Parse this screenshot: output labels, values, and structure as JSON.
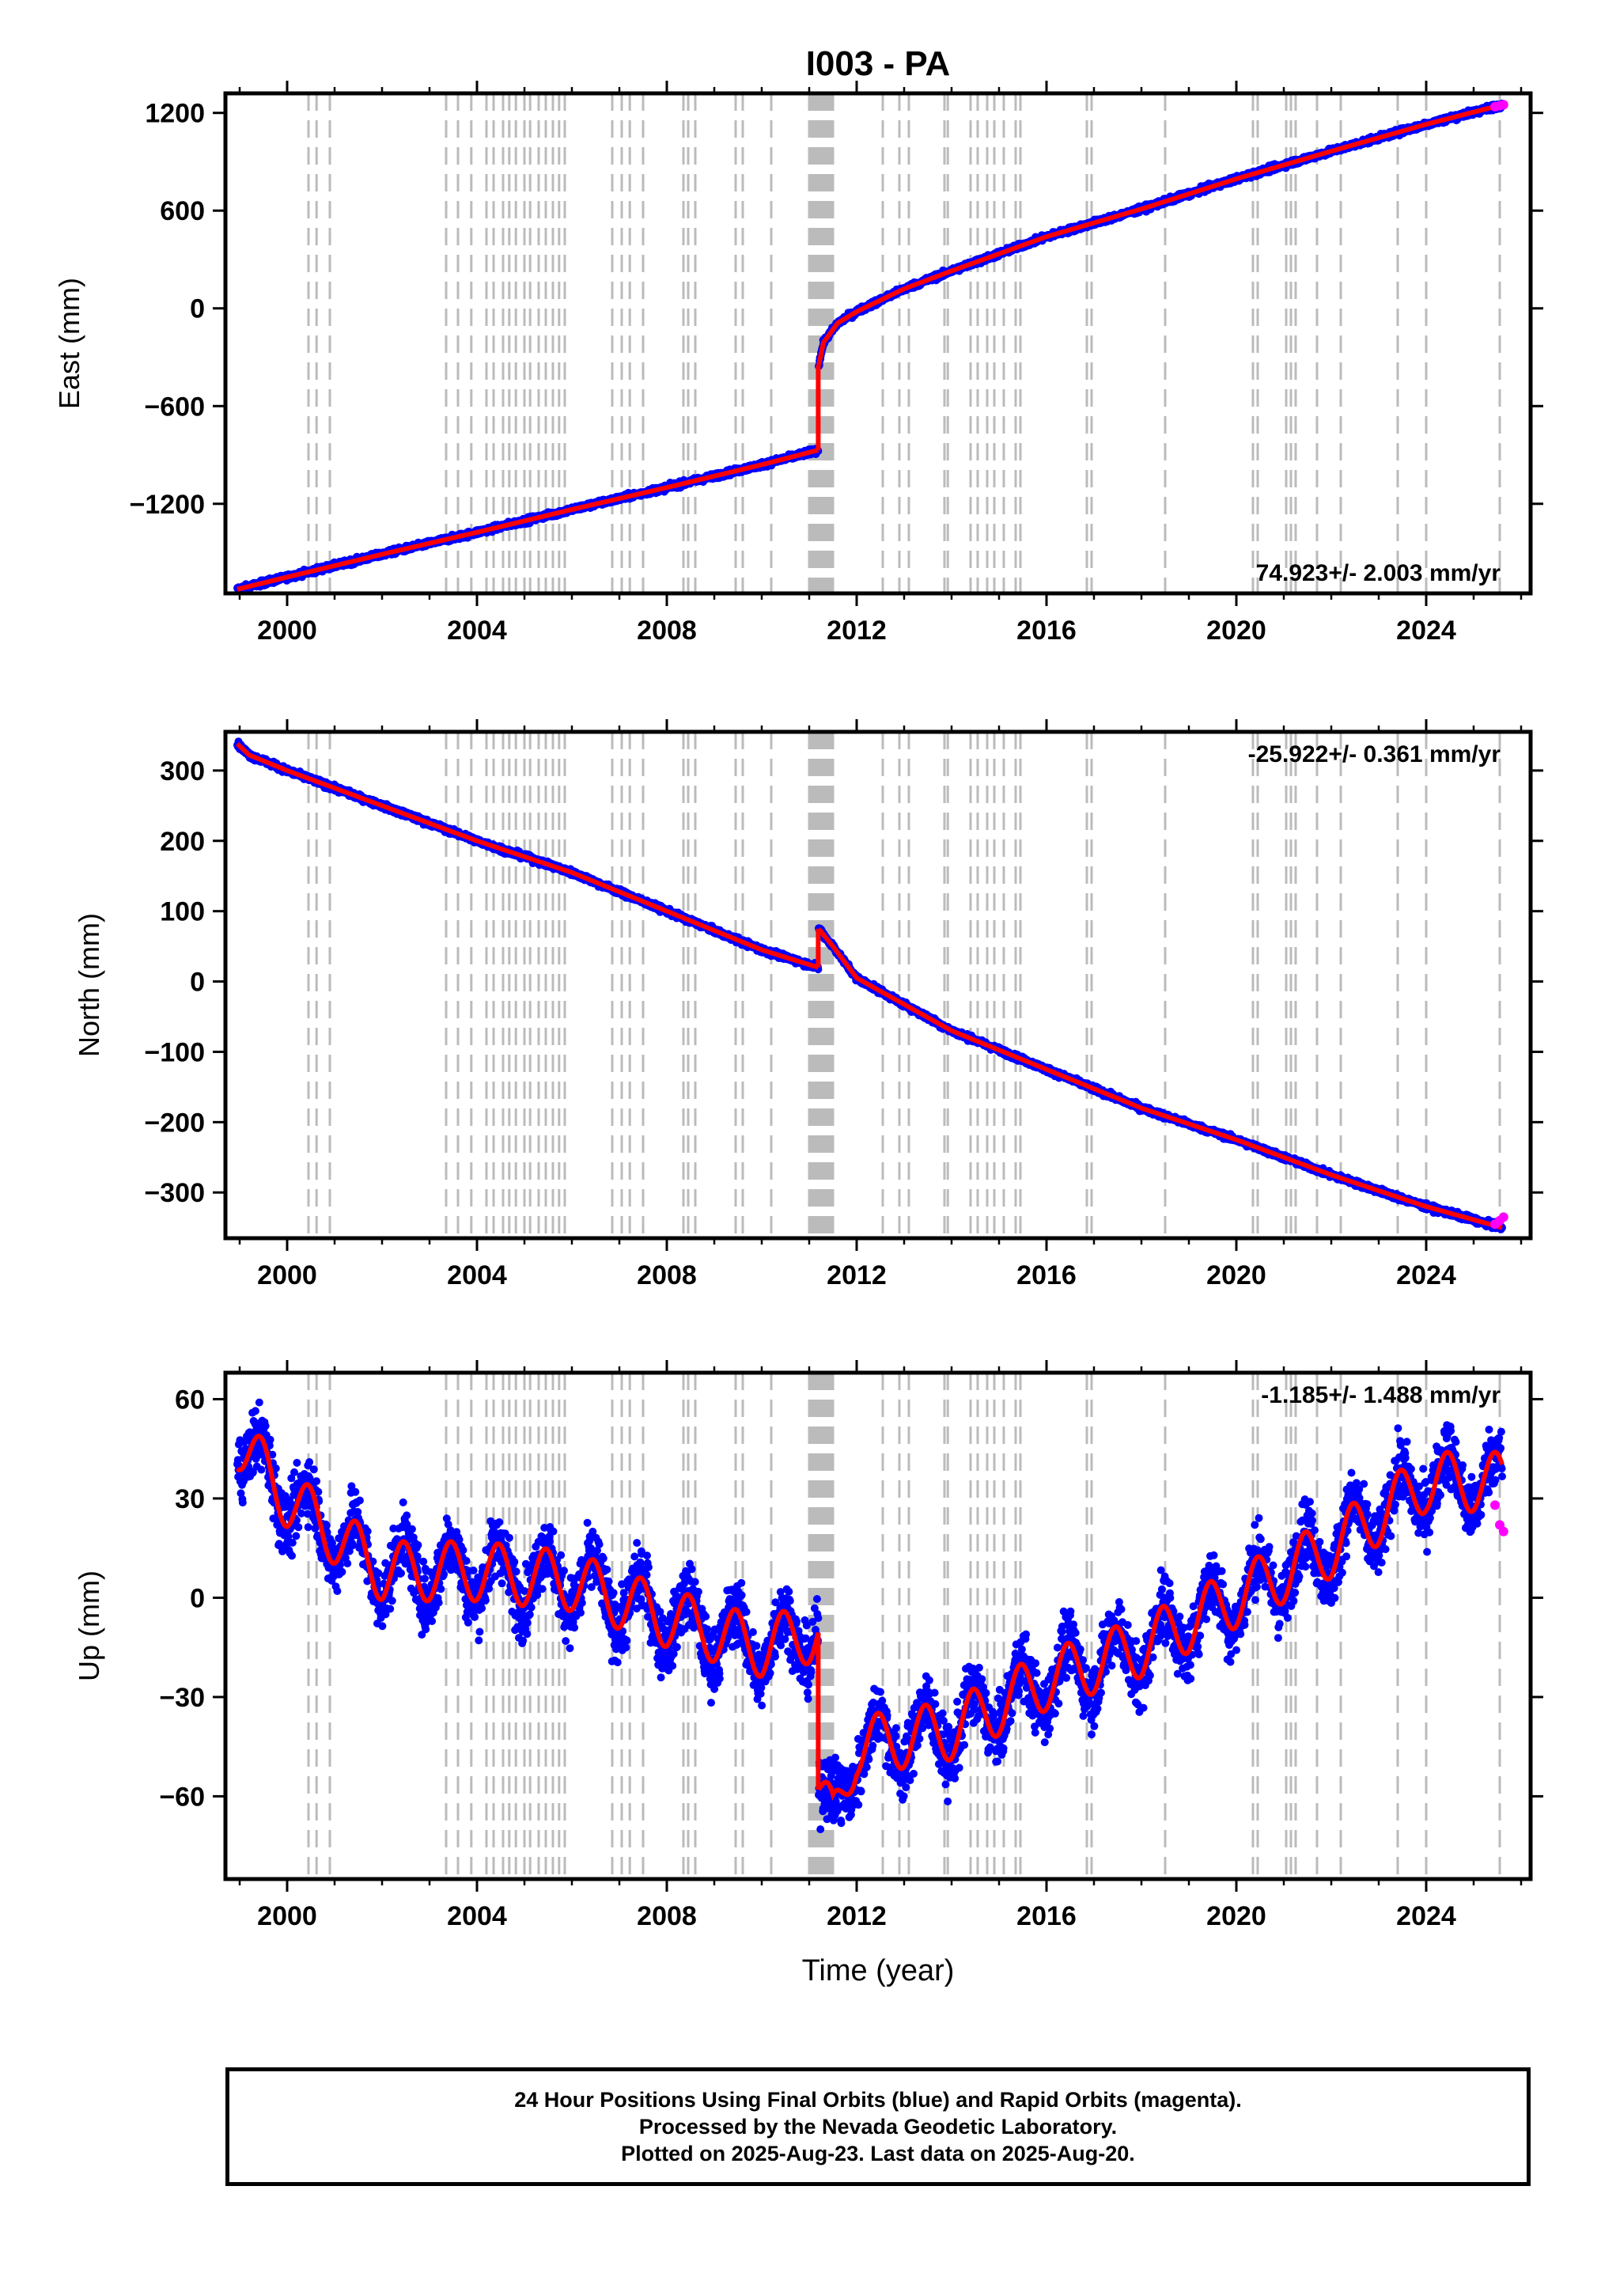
{
  "title": "I003 - PA",
  "colors": {
    "final": "#0000ff",
    "rapid": "#ff00ff",
    "model": "#ff0000",
    "events": "#bbbbbb"
  },
  "chart_data": [
    {
      "type": "scatter",
      "ylabel": "East (mm)",
      "xlabel": "",
      "xlim": [
        1998.7,
        2026.2
      ],
      "xticks": [
        2000,
        2004,
        2008,
        2012,
        2016,
        2020,
        2024
      ],
      "xticklabels": [
        "2000",
        "2004",
        "2008",
        "2012",
        "2016",
        "2020",
        "2024"
      ],
      "ylim": [
        -1750,
        1320
      ],
      "yticks": [
        -1200,
        -600,
        0,
        600,
        1200
      ],
      "yticklabels": [
        "−1200",
        "−600",
        "0",
        "600",
        "1200"
      ],
      "rate_text": "74.923+/- 2.003 mm/yr",
      "rate_pos": "bottom-right",
      "series": [
        {
          "x": [
            1998.95,
            2000,
            2002,
            2004,
            2006,
            2008,
            2010,
            2011.19
          ],
          "values": [
            -1725,
            -1650,
            -1510,
            -1375,
            -1235,
            -1100,
            -960,
            -870
          ]
        },
        {
          "x": [
            2011.2,
            2011.3,
            2011.6,
            2012,
            2013,
            2014,
            2016,
            2018,
            2020,
            2022,
            2024,
            2025.6
          ],
          "values": [
            -350,
            -210,
            -90,
            -20,
            120,
            230,
            440,
            610,
            795,
            965,
            1130,
            1250
          ]
        }
      ],
      "rapid": {
        "x": [
          2025.45,
          2025.55,
          2025.63
        ],
        "values": [
          1238,
          1244,
          1250
        ]
      }
    },
    {
      "type": "scatter",
      "ylabel": "North (mm)",
      "xlabel": "",
      "xlim": [
        1998.7,
        2026.2
      ],
      "xticks": [
        2000,
        2004,
        2008,
        2012,
        2016,
        2020,
        2024
      ],
      "xticklabels": [
        "2000",
        "2004",
        "2008",
        "2012",
        "2016",
        "2020",
        "2024"
      ],
      "ylim": [
        -365,
        355
      ],
      "yticks": [
        -300,
        -200,
        -100,
        0,
        100,
        200,
        300
      ],
      "yticklabels": [
        "−300",
        "−200",
        "−100",
        "0",
        "100",
        "200",
        "300"
      ],
      "rate_text": "-25.922+/- 0.361 mm/yr",
      "rate_pos": "top-right",
      "series": [
        {
          "x": [
            1998.95,
            1999.2,
            2000,
            2002,
            2004,
            2006,
            2008,
            2010,
            2011.19
          ],
          "values": [
            338,
            322,
            300,
            250,
            200,
            155,
            100,
            45,
            20
          ]
        },
        {
          "x": [
            2011.2,
            2011.5,
            2012,
            2014,
            2016,
            2018,
            2020,
            2022,
            2024,
            2025.6
          ],
          "values": [
            75,
            50,
            5,
            -70,
            -125,
            -180,
            -225,
            -275,
            -320,
            -350
          ]
        }
      ],
      "rapid": {
        "x": [
          2025.45,
          2025.55,
          2025.63
        ],
        "values": [
          -345,
          -340,
          -335
        ]
      }
    },
    {
      "type": "scatter",
      "ylabel": "Up (mm)",
      "xlabel": "Time (year)",
      "xlim": [
        1998.7,
        2026.2
      ],
      "xticks": [
        2000,
        2004,
        2008,
        2012,
        2016,
        2020,
        2024
      ],
      "xticklabels": [
        "2000",
        "2004",
        "2008",
        "2012",
        "2016",
        "2020",
        "2024"
      ],
      "ylim": [
        -85,
        68
      ],
      "yticks": [
        -60,
        -30,
        0,
        30,
        60
      ],
      "yticklabels": [
        "−60",
        "−30",
        "0",
        "30",
        "60"
      ],
      "rate_text": "-1.185+/- 1.488 mm/yr",
      "rate_pos": "top-right",
      "series": [
        {
          "x": [
            1998.95,
            2000,
            2002,
            2004,
            2006,
            2008,
            2010,
            2011.19
          ],
          "values": [
            48,
            30,
            8,
            8,
            5,
            -6,
            -15,
            -10
          ]
        },
        {
          "x": [
            2011.2,
            2011.5,
            2012,
            2014,
            2016,
            2018,
            2020,
            2022,
            2024,
            2025.6
          ],
          "values": [
            -58,
            -68,
            -45,
            -40,
            -25,
            -15,
            0,
            15,
            35,
            35
          ]
        }
      ],
      "seasonal_amplitude_mm": 9,
      "rapid": {
        "x": [
          2025.45,
          2025.55,
          2025.63
        ],
        "values": [
          28,
          22,
          20
        ]
      }
    }
  ],
  "event_years": [
    2000.45,
    2000.62,
    2000.9,
    2003.35,
    2003.6,
    2003.88,
    2004.2,
    2004.35,
    2004.55,
    2004.68,
    2004.82,
    2005.0,
    2005.12,
    2005.3,
    2005.45,
    2005.6,
    2005.73,
    2005.85,
    2006.85,
    2007.05,
    2007.22,
    2007.5,
    2008.35,
    2008.45,
    2008.6,
    2009.45,
    2009.6,
    2010.2,
    2011.0,
    2011.05,
    2011.1,
    2011.15,
    2011.2,
    2011.25,
    2011.3,
    2011.35,
    2011.4,
    2011.45,
    2011.5,
    2012.55,
    2012.9,
    2013.1,
    2013.85,
    2013.92,
    2014.4,
    2014.55,
    2014.75,
    2014.9,
    2015.1,
    2015.35,
    2015.45,
    2016.85,
    2016.95,
    2018.5,
    2020.35,
    2020.45,
    2021.05,
    2021.15,
    2021.25,
    2021.7,
    2022.2,
    2023.4,
    2024.0,
    2025.55
  ],
  "footer": {
    "line1": "24 Hour Positions Using Final Orbits (blue) and Rapid Orbits (magenta).",
    "line2": "Processed by the Nevada Geodetic Laboratory.",
    "line3": "Plotted on 2025-Aug-23. Last data on 2025-Aug-20."
  }
}
